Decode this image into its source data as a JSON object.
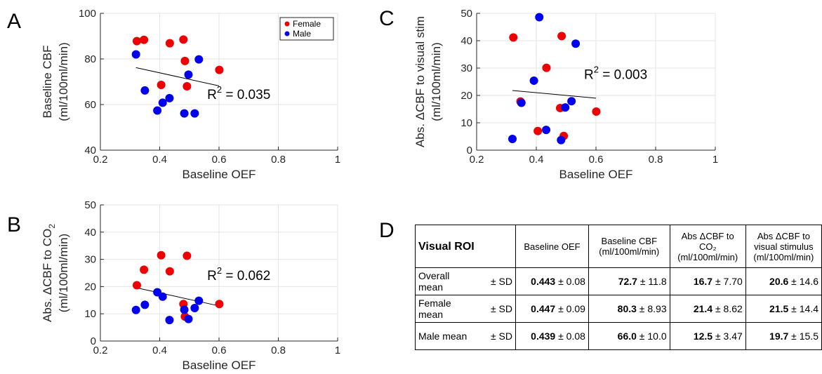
{
  "panels": {
    "a": {
      "letter": "A",
      "chart_data": {
        "type": "scatter",
        "xlabel": "Baseline OEF",
        "ylabel": [
          "Baseline CBF",
          "(ml/100ml/min)"
        ],
        "xlim": [
          0.2,
          1
        ],
        "ylim": [
          40,
          100
        ],
        "xticks": [
          "0.2",
          "0.4",
          "0.6",
          "0.8",
          "1"
        ],
        "yticks": [
          "40",
          "60",
          "80",
          "100"
        ],
        "grid": true,
        "legend": {
          "placement": "top-right",
          "entries": [
            "Female",
            "Male"
          ]
        },
        "series": [
          {
            "name": "Female",
            "color": "#ee0000",
            "x": [
              0.323,
              0.347,
              0.405,
              0.434,
              0.48,
              0.485,
              0.492,
              0.601
            ],
            "y": [
              87.8,
              88.4,
              68.6,
              86.9,
              88.5,
              79.1,
              68.0,
              75.2
            ]
          },
          {
            "name": "Male",
            "color": "#0000ee",
            "x": [
              0.32,
              0.35,
              0.392,
              0.41,
              0.433,
              0.483,
              0.497,
              0.518,
              0.532
            ],
            "y": [
              82.0,
              66.2,
              57.4,
              60.8,
              62.8,
              56.1,
              73.1,
              56.1,
              79.8
            ]
          }
        ],
        "fit": {
          "x": [
            0.32,
            0.6
          ],
          "y": [
            76.2,
            68.2
          ]
        },
        "annotation": {
          "text": "R",
          "sup": "2",
          "tail": " = 0.035",
          "x": 0.56,
          "y": 62.5
        }
      }
    },
    "b": {
      "letter": "B",
      "chart_data": {
        "type": "scatter",
        "xlabel": "Baseline OEF",
        "ylabel": [
          "Abs. ΔCBF to CO",
          "2",
          "(ml/100ml/min)"
        ],
        "xlim": [
          0.2,
          1
        ],
        "ylim": [
          0,
          50
        ],
        "xticks": [
          "0.2",
          "0.4",
          "0.6",
          "0.8",
          "1"
        ],
        "yticks": [
          "0",
          "10",
          "20",
          "30",
          "40",
          "50"
        ],
        "grid": true,
        "series": [
          {
            "name": "Female",
            "color": "#ee0000",
            "x": [
              0.323,
              0.347,
              0.405,
              0.434,
              0.48,
              0.485,
              0.492,
              0.601
            ],
            "y": [
              20.5,
              26.2,
              31.5,
              25.6,
              13.6,
              9.0,
              31.3,
              13.6
            ]
          },
          {
            "name": "Male",
            "color": "#0000ee",
            "x": [
              0.32,
              0.35,
              0.392,
              0.41,
              0.433,
              0.483,
              0.497,
              0.518,
              0.532
            ],
            "y": [
              11.4,
              13.3,
              17.9,
              16.3,
              7.7,
              11.5,
              8.1,
              12.1,
              14.8
            ]
          }
        ],
        "fit": {
          "x": [
            0.32,
            0.6
          ],
          "y": [
            19.6,
            12.9
          ]
        },
        "annotation": {
          "text": "R",
          "sup": "2",
          "tail": " = 0.062",
          "x": 0.56,
          "y": 22.4
        }
      }
    },
    "c": {
      "letter": "C",
      "chart_data": {
        "type": "scatter",
        "xlabel": "Baseline OEF",
        "ylabel": [
          "Abs. ΔCBF to visual stim",
          "(ml/100ml/min)"
        ],
        "xlim": [
          0.2,
          1
        ],
        "ylim": [
          0,
          50
        ],
        "xticks": [
          "0.2",
          "0.4",
          "0.6",
          "0.8",
          "1"
        ],
        "yticks": [
          "0",
          "10",
          "20",
          "30",
          "40",
          "50"
        ],
        "grid": true,
        "series": [
          {
            "name": "Female",
            "color": "#ee0000",
            "x": [
              0.323,
              0.347,
              0.405,
              0.434,
              0.48,
              0.485,
              0.492,
              0.601
            ],
            "y": [
              41.2,
              17.8,
              7.0,
              30.1,
              15.4,
              41.7,
              5.2,
              14.1
            ]
          },
          {
            "name": "Male",
            "color": "#0000ee",
            "x": [
              0.32,
              0.35,
              0.392,
              0.41,
              0.433,
              0.483,
              0.497,
              0.518,
              0.532
            ],
            "y": [
              4.1,
              17.3,
              25.4,
              48.6,
              7.4,
              3.7,
              15.6,
              17.9,
              38.9
            ]
          }
        ],
        "fit": {
          "x": [
            0.32,
            0.6
          ],
          "y": [
            21.8,
            19.0
          ]
        },
        "annotation": {
          "text": "R",
          "sup": "2",
          "tail": " = 0.003",
          "x": 0.56,
          "y": 26.0
        }
      }
    }
  },
  "table": {
    "letter": "D",
    "roi_label": "Visual ROI",
    "headers": [
      [
        "Baseline OEF"
      ],
      [
        "Baseline CBF",
        "(ml/100ml/min)"
      ],
      [
        "Abs ΔCBF to",
        "CO₂",
        "(ml/100ml/min)"
      ],
      [
        "Abs ΔCBF to",
        "visual stimulus",
        "(ml/100ml/min)"
      ]
    ],
    "rows": [
      {
        "label": [
          "Overall",
          "mean"
        ],
        "sd": "± SD",
        "cells": [
          {
            "mean": "0.443",
            "sd": " ± 0.08"
          },
          {
            "mean": "72.7",
            "sd": " ± 11.8"
          },
          {
            "mean": "16.7",
            "sd": " ± 7.70"
          },
          {
            "mean": "20.6",
            "sd": " ± 14.6"
          }
        ]
      },
      {
        "label": [
          "Female",
          "mean"
        ],
        "sd": "± SD",
        "cells": [
          {
            "mean": "0.447",
            "sd": " ± 0.09"
          },
          {
            "mean": "80.3",
            "sd": " ± 8.93"
          },
          {
            "mean": "21.4",
            "sd": " ± 8.62"
          },
          {
            "mean": "21.5",
            "sd": " ± 14.4"
          }
        ]
      },
      {
        "label": [
          "Male mean"
        ],
        "sd": "± SD",
        "cells": [
          {
            "mean": "0.439",
            "sd": " ± 0.08"
          },
          {
            "mean": "66.0",
            "sd": " ± 10.0"
          },
          {
            "mean": "12.5",
            "sd": " ± 3.47"
          },
          {
            "mean": "19.7",
            "sd": " ± 15.5"
          }
        ]
      }
    ]
  }
}
